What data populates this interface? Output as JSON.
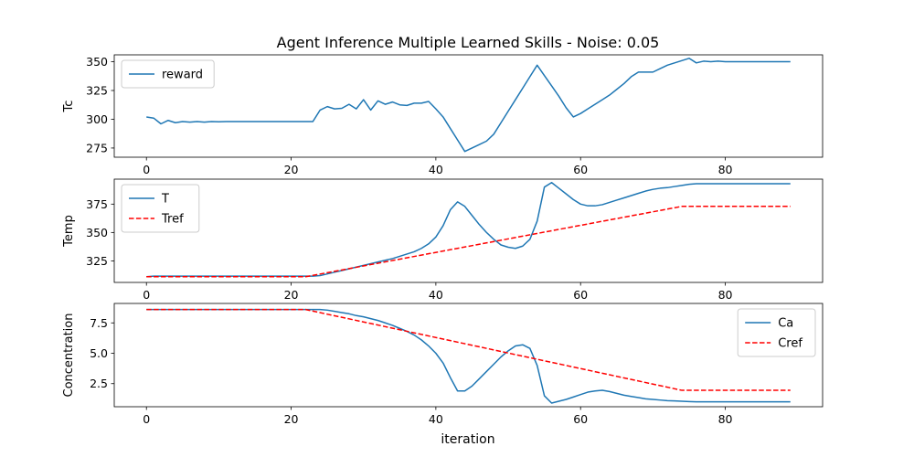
{
  "title": "Agent Inference Multiple Learned Skills - Noise: 0.05",
  "colors": {
    "blue": "#1f77b4",
    "red": "#ff0000"
  },
  "chart_data": [
    {
      "type": "line",
      "ylabel": "Tc",
      "xlim": [
        -4.45,
        93.45
      ],
      "ylim": [
        267,
        356
      ],
      "xticks": [
        0,
        20,
        40,
        60,
        80
      ],
      "yticks": [
        275,
        300,
        325,
        350
      ],
      "legend": {
        "position": "upper-left"
      },
      "series": [
        {
          "name": "reward",
          "style": "solid",
          "color": "blue",
          "x": [
            0,
            1,
            2,
            3,
            4,
            5,
            6,
            7,
            8,
            9,
            10,
            11,
            12,
            13,
            14,
            15,
            16,
            17,
            18,
            19,
            20,
            21,
            22,
            23,
            24,
            25,
            26,
            27,
            28,
            29,
            30,
            31,
            32,
            33,
            34,
            35,
            36,
            37,
            38,
            39,
            40,
            41,
            42,
            43,
            44,
            45,
            46,
            47,
            48,
            49,
            50,
            51,
            52,
            53,
            54,
            55,
            56,
            57,
            58,
            59,
            60,
            61,
            62,
            63,
            64,
            65,
            66,
            67,
            68,
            69,
            70,
            71,
            72,
            73,
            74,
            75,
            76,
            77,
            78,
            79,
            80,
            81,
            82,
            83,
            84,
            85,
            86,
            87,
            88,
            89
          ],
          "values": [
            302,
            301,
            296,
            299,
            297,
            298,
            297.5,
            298,
            297.5,
            298,
            297.8,
            298,
            298,
            298,
            298,
            298,
            298,
            298,
            298,
            298,
            298,
            298,
            298,
            298,
            308,
            311,
            309,
            309.5,
            313,
            309,
            317,
            308,
            316,
            313,
            315,
            312.5,
            312,
            314,
            314,
            315.5,
            309,
            302,
            292,
            282,
            272,
            275,
            278,
            281,
            287,
            297,
            307,
            317,
            327,
            337,
            347,
            338,
            329,
            320,
            310,
            302,
            305,
            309,
            313,
            317,
            321,
            326,
            331,
            337,
            341,
            341,
            341,
            344,
            347,
            349,
            351,
            353,
            349,
            350.5,
            350,
            350.5,
            350,
            350,
            350,
            350,
            350,
            350,
            350,
            350,
            350,
            350
          ]
        }
      ]
    },
    {
      "type": "line",
      "ylabel": "Temp",
      "xlim": [
        -4.45,
        93.45
      ],
      "ylim": [
        306,
        397
      ],
      "xticks": [
        0,
        20,
        40,
        60,
        80
      ],
      "yticks": [
        325,
        350,
        375
      ],
      "legend": {
        "position": "upper-left"
      },
      "series": [
        {
          "name": "T",
          "style": "solid",
          "color": "blue",
          "x": [
            0,
            1,
            2,
            3,
            4,
            5,
            6,
            7,
            8,
            9,
            10,
            11,
            12,
            13,
            14,
            15,
            16,
            17,
            18,
            19,
            20,
            21,
            22,
            23,
            24,
            25,
            26,
            27,
            28,
            29,
            30,
            31,
            32,
            33,
            34,
            35,
            36,
            37,
            38,
            39,
            40,
            41,
            42,
            43,
            44,
            45,
            46,
            47,
            48,
            49,
            50,
            51,
            52,
            53,
            54,
            55,
            56,
            57,
            58,
            59,
            60,
            61,
            62,
            63,
            64,
            65,
            66,
            67,
            68,
            69,
            70,
            71,
            72,
            73,
            74,
            75,
            76,
            77,
            78,
            79,
            80,
            81,
            82,
            83,
            84,
            85,
            86,
            87,
            88,
            89
          ],
          "values": [
            311,
            311.5,
            311.5,
            311.5,
            311.5,
            311.5,
            311.5,
            311.5,
            311.5,
            311.5,
            311.5,
            311.5,
            311.5,
            311.5,
            311.5,
            311.5,
            311.5,
            311.5,
            311.5,
            311.5,
            311.5,
            311.5,
            311.5,
            311.5,
            312,
            313.5,
            315,
            316.5,
            318,
            319.5,
            321,
            322.5,
            324,
            325.5,
            327,
            329,
            331,
            333,
            336,
            340,
            346,
            356,
            370,
            377,
            373,
            365,
            357,
            350,
            344,
            339,
            337,
            336,
            338,
            344,
            360,
            390,
            394,
            389,
            384,
            379,
            375,
            373.5,
            373.5,
            374.5,
            376.5,
            378.5,
            380.5,
            382.5,
            384.5,
            386.5,
            388,
            389,
            389.5,
            390.5,
            391.5,
            392.5,
            393,
            393,
            393,
            393,
            393,
            393,
            393,
            393,
            393,
            393,
            393,
            393,
            393,
            393
          ]
        },
        {
          "name": "Tref",
          "style": "dashed",
          "color": "red",
          "x": [
            0,
            22,
            74,
            89
          ],
          "values": [
            311,
            311,
            373,
            373
          ]
        }
      ]
    },
    {
      "type": "line",
      "ylabel": "Concentration",
      "xlabel": "iteration",
      "xlim": [
        -4.45,
        93.45
      ],
      "ylim": [
        0.6,
        9.1
      ],
      "xticks": [
        0,
        20,
        40,
        60,
        80
      ],
      "yticks": [
        2.5,
        5.0,
        7.5
      ],
      "legend": {
        "position": "upper-right"
      },
      "series": [
        {
          "name": "Ca",
          "style": "solid",
          "color": "blue",
          "x": [
            0,
            1,
            2,
            3,
            4,
            5,
            6,
            7,
            8,
            9,
            10,
            11,
            12,
            13,
            14,
            15,
            16,
            17,
            18,
            19,
            20,
            21,
            22,
            23,
            24,
            25,
            26,
            27,
            28,
            29,
            30,
            31,
            32,
            33,
            34,
            35,
            36,
            37,
            38,
            39,
            40,
            41,
            42,
            43,
            44,
            45,
            46,
            47,
            48,
            49,
            50,
            51,
            52,
            53,
            54,
            55,
            56,
            57,
            58,
            59,
            60,
            61,
            62,
            63,
            64,
            65,
            66,
            67,
            68,
            69,
            70,
            71,
            72,
            73,
            74,
            75,
            76,
            77,
            78,
            79,
            80,
            81,
            82,
            83,
            84,
            85,
            86,
            87,
            88,
            89
          ],
          "values": [
            8.6,
            8.6,
            8.6,
            8.6,
            8.6,
            8.6,
            8.6,
            8.6,
            8.6,
            8.6,
            8.6,
            8.6,
            8.6,
            8.6,
            8.6,
            8.6,
            8.6,
            8.6,
            8.6,
            8.6,
            8.6,
            8.6,
            8.6,
            8.6,
            8.6,
            8.55,
            8.45,
            8.35,
            8.25,
            8.1,
            8.0,
            7.85,
            7.7,
            7.5,
            7.3,
            7.05,
            6.8,
            6.5,
            6.1,
            5.6,
            5.0,
            4.2,
            3.0,
            1.9,
            1.9,
            2.3,
            2.9,
            3.5,
            4.1,
            4.7,
            5.2,
            5.6,
            5.7,
            5.4,
            4.0,
            1.5,
            0.9,
            1.05,
            1.2,
            1.4,
            1.6,
            1.8,
            1.9,
            1.95,
            1.85,
            1.7,
            1.55,
            1.45,
            1.35,
            1.25,
            1.2,
            1.15,
            1.1,
            1.08,
            1.05,
            1.02,
            1.0,
            1.0,
            1.0,
            1.0,
            1.0,
            1.0,
            1.0,
            1.0,
            1.0,
            1.0,
            1.0,
            1.0,
            1.0,
            1.0
          ]
        },
        {
          "name": "Cref",
          "style": "dashed",
          "color": "red",
          "x": [
            0,
            22,
            74,
            89
          ],
          "values": [
            8.6,
            8.6,
            1.95,
            1.95
          ]
        }
      ]
    }
  ]
}
